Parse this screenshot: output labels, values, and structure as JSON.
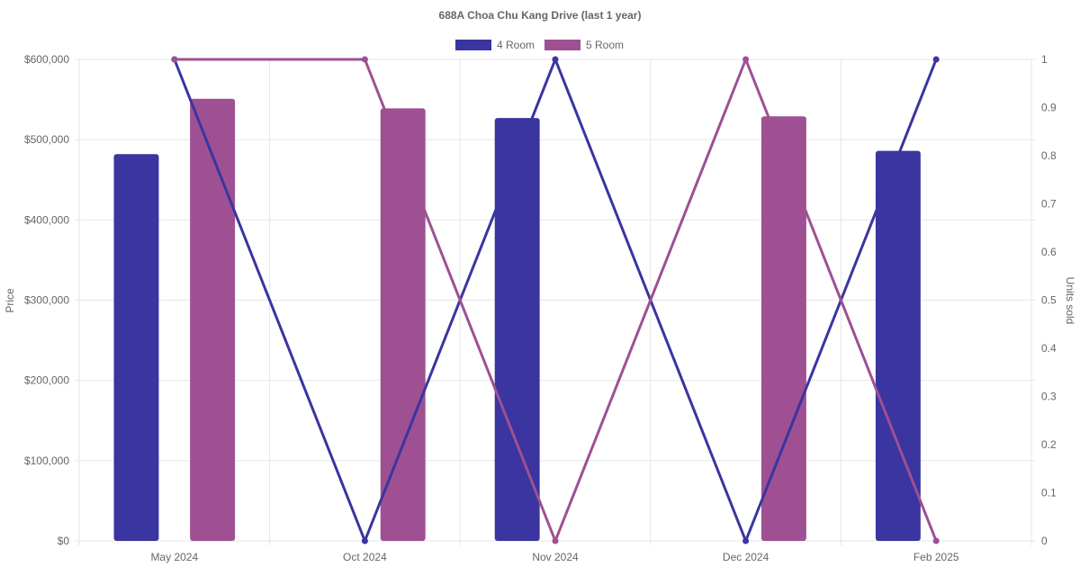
{
  "chart_data": {
    "type": "bar",
    "title": "688A Choa Chu Kang Drive (last 1 year)",
    "categories": [
      "May 2024",
      "Oct 2024",
      "Nov 2024",
      "Dec 2024",
      "Feb 2025"
    ],
    "ylabel": "Price",
    "y2label": "Units sold",
    "ylim": [
      0,
      600000
    ],
    "y2lim": [
      0,
      1
    ],
    "yticks": [
      "$0",
      "$100,000",
      "$200,000",
      "$300,000",
      "$400,000",
      "$500,000",
      "$600,000"
    ],
    "y2ticks": [
      "0",
      "0.1",
      "0.2",
      "0.3",
      "0.4",
      "0.5",
      "0.6",
      "0.7",
      "0.8",
      "0.9",
      "1"
    ],
    "legend_position": "top",
    "grid": true,
    "series": [
      {
        "name": "4 Room",
        "color": "#3a35a0",
        "price": [
          482000,
          null,
          527000,
          null,
          486000
        ],
        "units_sold": [
          1,
          0,
          1,
          0,
          1
        ]
      },
      {
        "name": "5 Room",
        "color": "#9e5093",
        "price": [
          551000,
          539000,
          null,
          529000,
          null
        ],
        "units_sold": [
          1,
          1,
          0,
          1,
          0
        ]
      }
    ]
  }
}
